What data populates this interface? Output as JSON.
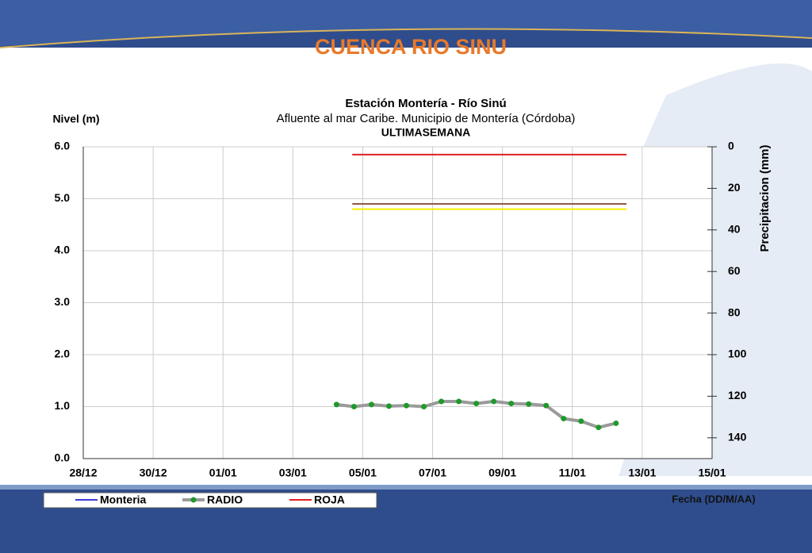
{
  "header": {
    "title": "CUENCA RIO SINU"
  },
  "chart_data": {
    "type": "line",
    "title": "Estación Montería  - Río Sinú",
    "subtitle": "Afluente al mar Caribe. Municipio de Montería (Córdoba)",
    "subtitle2": "ULTIMASEMANA",
    "ylabel": "Nivel (m)",
    "y2label": "Precipitacion (mm)",
    "xlabel": "Fecha (DD/M/AA)",
    "xlim": [
      0,
      18
    ],
    "xticks": [
      {
        "value": 0,
        "label": "28/12"
      },
      {
        "value": 2,
        "label": "30/12"
      },
      {
        "value": 4,
        "label": "01/01"
      },
      {
        "value": 6,
        "label": "03/01"
      },
      {
        "value": 8,
        "label": "05/01"
      },
      {
        "value": 10,
        "label": "07/01"
      },
      {
        "value": 12,
        "label": "09/01"
      },
      {
        "value": 14,
        "label": "11/01"
      },
      {
        "value": 16,
        "label": "13/01"
      },
      {
        "value": 18,
        "label": "15/01"
      }
    ],
    "ylim": [
      0,
      6
    ],
    "yticks": [
      {
        "value": 0,
        "label": "0.0"
      },
      {
        "value": 1,
        "label": "1.0"
      },
      {
        "value": 2,
        "label": "2.0"
      },
      {
        "value": 3,
        "label": "3.0"
      },
      {
        "value": 4,
        "label": "4.0"
      },
      {
        "value": 5,
        "label": "5.0"
      },
      {
        "value": 6,
        "label": "6.0"
      }
    ],
    "y2lim": [
      150,
      0
    ],
    "y2ticks": [
      0,
      20,
      40,
      60,
      80,
      100,
      120,
      140
    ],
    "grid": true,
    "series": [
      {
        "name": "Monteria",
        "color": "#3a3ad8",
        "x": [],
        "values": []
      },
      {
        "name": "RADIO",
        "color": "#9a9a9a",
        "marker_color": "#1f9a2a",
        "x": [
          7.25,
          7.75,
          8.25,
          8.75,
          9.25,
          9.75,
          10.25,
          10.75,
          11.25,
          11.75,
          12.25,
          12.75,
          13.25,
          13.75,
          14.25,
          14.75,
          15.25
        ],
        "values": [
          1.04,
          1.0,
          1.04,
          1.01,
          1.02,
          1.0,
          1.1,
          1.1,
          1.06,
          1.1,
          1.06,
          1.05,
          1.02,
          0.77,
          0.72,
          0.6,
          0.68
        ]
      },
      {
        "name": "ROJA",
        "color": "#e02020",
        "x": [
          7.7,
          15.55
        ],
        "values": [
          5.85,
          5.85
        ]
      },
      {
        "color": "#8b5a4a",
        "x": [
          7.7,
          15.55
        ],
        "values": [
          4.9,
          4.9
        ]
      },
      {
        "color": "#f4f000",
        "x": [
          7.7,
          15.55
        ],
        "values": [
          4.8,
          4.8
        ]
      }
    ]
  }
}
